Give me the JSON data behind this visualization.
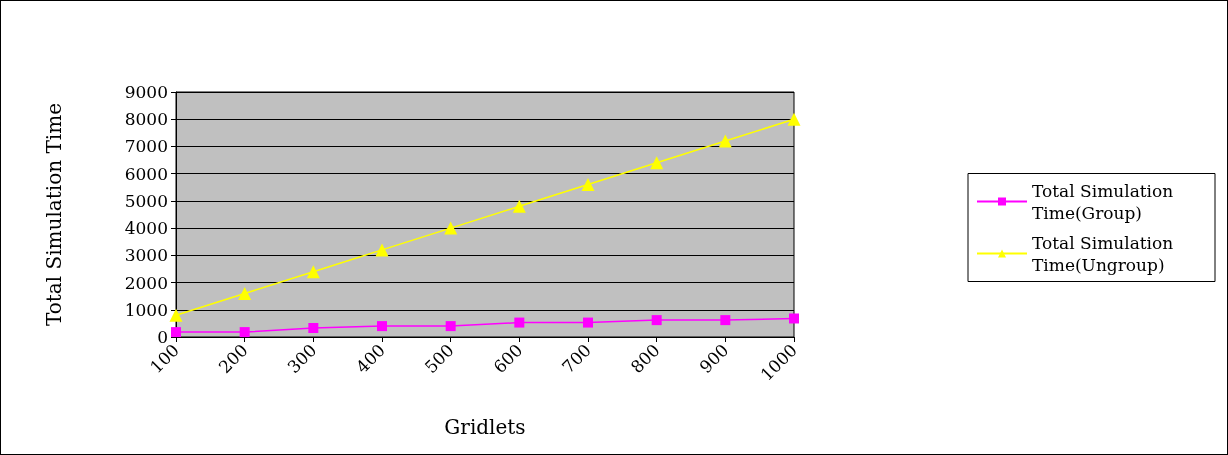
{
  "chart_data": {
    "type": "line",
    "xlabel": "Gridlets",
    "ylabel": "Total Simulation Time",
    "categories": [
      "100",
      "200",
      "300",
      "400",
      "500",
      "600",
      "700",
      "800",
      "900",
      "1000"
    ],
    "series": [
      {
        "name": "Total Simulation Time(Group)",
        "color": "#ff00ff",
        "marker": "square",
        "values": [
          180,
          180,
          330,
          400,
          400,
          530,
          530,
          620,
          620,
          680
        ]
      },
      {
        "name": "Total Simulation Time(Ungroup)",
        "color": "#ffff00",
        "marker": "triangle",
        "values": [
          800,
          1600,
          2400,
          3200,
          4000,
          4800,
          5600,
          6400,
          7200,
          8000
        ]
      }
    ],
    "ylim": [
      0,
      9000
    ],
    "yticks": [
      0,
      1000,
      2000,
      3000,
      4000,
      5000,
      6000,
      7000,
      8000,
      9000
    ],
    "grid": "y",
    "legend": "right"
  }
}
